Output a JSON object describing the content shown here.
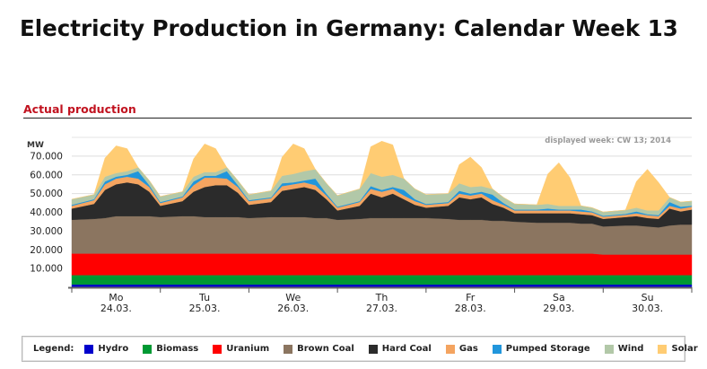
{
  "page": {
    "title": "Electricity Production in Germany: Calendar Week 13",
    "section_title": "Actual production"
  },
  "colors": {
    "Hydro": "#0000cc",
    "Biomass": "#009933",
    "Uranium": "#ff0000",
    "Brown Coal": "#8b7560",
    "Hard Coal": "#2b2b2b",
    "Gas": "#f4a460",
    "Pumped Storage": "#2196dc",
    "Wind": "#b2c8a8",
    "Solar": "#ffcc73"
  },
  "legend": {
    "label": "Legend:",
    "items": [
      "Hydro",
      "Biomass",
      "Uranium",
      "Brown Coal",
      "Hard Coal",
      "Gas",
      "Pumped Storage",
      "Wind",
      "Solar"
    ]
  },
  "chart_data": {
    "type": "area",
    "stacked": true,
    "title": "Actual production",
    "ylabel": "MW",
    "ylim": [
      0,
      80000
    ],
    "yticks": [
      10000,
      20000,
      30000,
      40000,
      50000,
      60000,
      70000
    ],
    "ytick_labels": [
      "10.000",
      "20.000",
      "30.000",
      "40.000",
      "50.000",
      "60.000",
      "70.000"
    ],
    "note": "displayed week: CW 13; 2014",
    "days": [
      {
        "weekday": "Mo",
        "date": "24.03."
      },
      {
        "weekday": "Tu",
        "date": "25.03."
      },
      {
        "weekday": "We",
        "date": "26.03."
      },
      {
        "weekday": "Th",
        "date": "27.03."
      },
      {
        "weekday": "Fr",
        "date": "28.03."
      },
      {
        "weekday": "Sa",
        "date": "29.03."
      },
      {
        "weekday": "Su",
        "date": "30.03."
      }
    ],
    "x_unit": "hours since Mon 24.03. 00:00",
    "x": [
      0,
      6,
      9,
      12,
      15,
      18,
      21,
      24,
      30,
      33,
      36,
      39,
      42,
      45,
      48,
      54,
      57,
      60,
      63,
      66,
      69,
      72,
      78,
      81,
      84,
      87,
      90,
      93,
      96,
      102,
      105,
      108,
      111,
      114,
      117,
      120,
      126,
      129,
      132,
      135,
      138,
      141,
      144,
      150,
      153,
      156,
      159,
      162,
      165,
      168
    ],
    "series": [
      {
        "name": "Hydro",
        "values": [
          1500,
          1500,
          1500,
          1500,
          1500,
          1500,
          1500,
          1500,
          1500,
          1500,
          1500,
          1500,
          1500,
          1500,
          1500,
          1500,
          1500,
          1500,
          1500,
          1500,
          1500,
          1500,
          1500,
          1500,
          1500,
          1500,
          1500,
          1500,
          1500,
          1500,
          1500,
          1500,
          1500,
          1500,
          1500,
          1500,
          1500,
          1500,
          1500,
          1500,
          1500,
          1500,
          1500,
          1500,
          1500,
          1500,
          1500,
          1500,
          1500,
          1500
        ]
      },
      {
        "name": "Biomass",
        "values": [
          5000,
          5000,
          5000,
          5000,
          5000,
          5000,
          5000,
          5000,
          5000,
          5000,
          5000,
          5000,
          5000,
          5000,
          5000,
          5000,
          5000,
          5000,
          5000,
          5000,
          5000,
          5000,
          5000,
          5000,
          5000,
          5000,
          5000,
          5000,
          5000,
          5000,
          5000,
          5000,
          5000,
          5000,
          5000,
          5000,
          5000,
          5000,
          5000,
          5000,
          5000,
          5000,
          5000,
          5000,
          5000,
          5000,
          5000,
          5000,
          5000,
          5000
        ]
      },
      {
        "name": "Uranium",
        "values": [
          11500,
          11500,
          11500,
          11500,
          11500,
          11500,
          11500,
          11500,
          11500,
          11500,
          11500,
          11500,
          11500,
          11500,
          11500,
          11500,
          11500,
          11500,
          11500,
          11500,
          11500,
          11500,
          11500,
          11500,
          11500,
          11500,
          11500,
          11500,
          11500,
          11500,
          11500,
          11500,
          11500,
          11500,
          11500,
          11500,
          11500,
          11500,
          11500,
          11500,
          11500,
          11500,
          11000,
          11000,
          11000,
          11000,
          11000,
          11000,
          11000,
          11000
        ]
      },
      {
        "name": "Brown Coal",
        "values": [
          18000,
          18500,
          19000,
          20000,
          20000,
          20000,
          20000,
          19500,
          20000,
          20000,
          19500,
          19500,
          19500,
          19500,
          19000,
          19500,
          19500,
          19500,
          19500,
          19000,
          19000,
          18000,
          18500,
          19000,
          19000,
          19000,
          19000,
          19000,
          19000,
          18500,
          18000,
          18000,
          18000,
          17500,
          17500,
          17000,
          16500,
          16500,
          16500,
          16500,
          16000,
          16000,
          15000,
          15500,
          15500,
          15000,
          14500,
          15500,
          16000,
          16000
        ]
      },
      {
        "name": "Hard Coal",
        "values": [
          6000,
          8000,
          15000,
          17000,
          18000,
          17000,
          13000,
          6000,
          8000,
          13000,
          16000,
          17000,
          17000,
          13000,
          7000,
          8000,
          14000,
          15000,
          16000,
          15000,
          10000,
          5000,
          7000,
          13000,
          11000,
          13000,
          10000,
          7000,
          5500,
          7000,
          12000,
          11000,
          12000,
          9000,
          7000,
          4500,
          5000,
          5000,
          5000,
          5000,
          5000,
          4500,
          4000,
          4500,
          5000,
          4500,
          4500,
          9000,
          7000,
          8000
        ]
      },
      {
        "name": "Gas",
        "values": [
          1500,
          2000,
          3000,
          3000,
          3000,
          3000,
          2500,
          1500,
          2000,
          3500,
          5000,
          4000,
          3500,
          3000,
          2000,
          2000,
          2500,
          2500,
          2500,
          2500,
          2000,
          1500,
          2000,
          2500,
          3000,
          2500,
          2000,
          2000,
          1500,
          1500,
          2000,
          2000,
          2000,
          2000,
          1500,
          1500,
          1500,
          1500,
          1500,
          1500,
          1500,
          1500,
          1200,
          1200,
          1500,
          1500,
          1500,
          1500,
          1500,
          1500
        ]
      },
      {
        "name": "Pumped Storage",
        "values": [
          500,
          500,
          1500,
          1000,
          1000,
          4000,
          1000,
          500,
          500,
          2000,
          1000,
          1000,
          4000,
          1000,
          500,
          500,
          1500,
          1000,
          1000,
          3500,
          1000,
          500,
          500,
          1500,
          1000,
          1000,
          3000,
          1000,
          500,
          500,
          1500,
          1000,
          1000,
          3000,
          1000,
          500,
          500,
          1000,
          500,
          500,
          1000,
          500,
          500,
          500,
          1000,
          500,
          500,
          2000,
          1000,
          500
        ]
      },
      {
        "name": "Wind",
        "values": [
          3000,
          2500,
          2500,
          2000,
          2000,
          2000,
          2500,
          3000,
          2500,
          2500,
          2000,
          2000,
          2000,
          2500,
          3000,
          3500,
          4000,
          4500,
          5000,
          5000,
          5500,
          6000,
          6500,
          7000,
          7000,
          6500,
          6000,
          5500,
          5000,
          4500,
          4000,
          3500,
          3000,
          3000,
          3000,
          3000,
          2500,
          2500,
          2000,
          2000,
          2000,
          2000,
          2000,
          2000,
          2000,
          2000,
          2500,
          2500,
          2500,
          2500
        ]
      },
      {
        "name": "Solar",
        "values": [
          0,
          0,
          10000,
          14500,
          12000,
          0,
          0,
          0,
          0,
          9500,
          15000,
          12500,
          0,
          0,
          0,
          0,
          10000,
          16000,
          12000,
          0,
          0,
          0,
          0,
          14000,
          19000,
          16000,
          0,
          0,
          0,
          0,
          10000,
          16000,
          10000,
          0,
          0,
          0,
          0,
          16000,
          23000,
          15000,
          0,
          0,
          0,
          0,
          14000,
          22000,
          15000,
          0,
          0,
          0
        ]
      }
    ]
  }
}
